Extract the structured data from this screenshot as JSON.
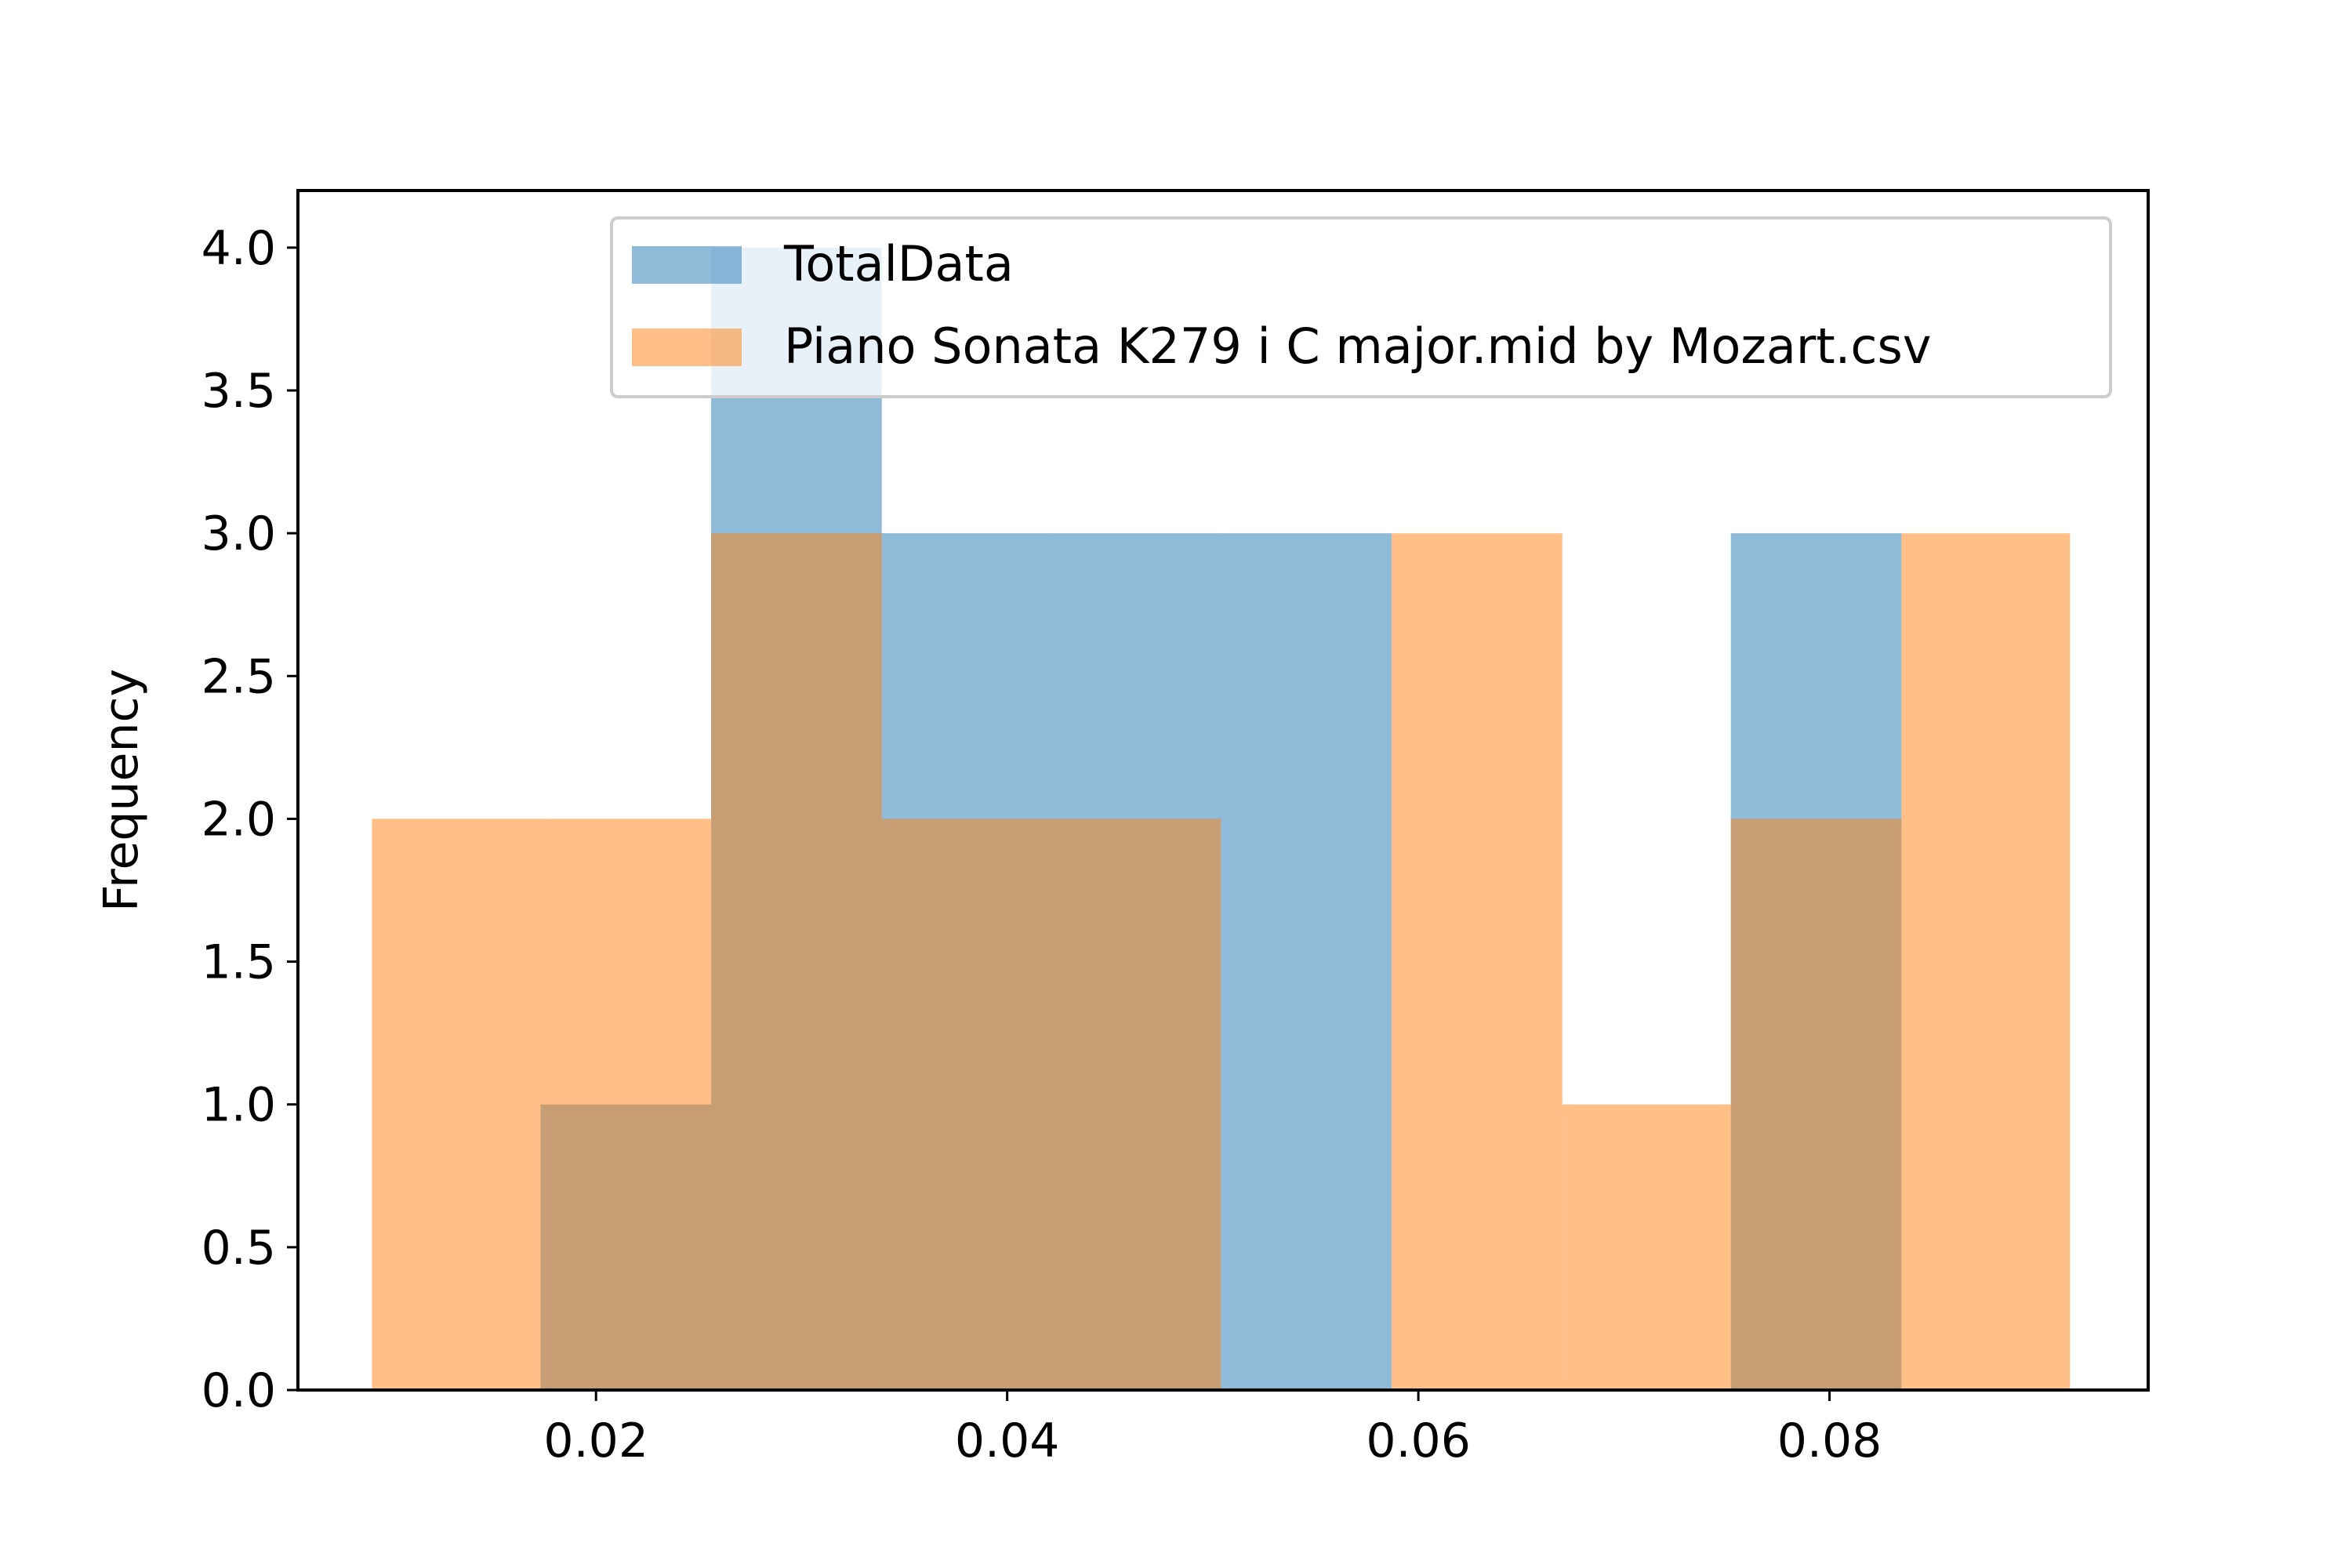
{
  "chart_data": {
    "type": "bar",
    "title": "",
    "xlabel": "",
    "ylabel": "Frequency",
    "xlim": [
      0.0055,
      0.0955
    ],
    "ylim": [
      0,
      4.2
    ],
    "xticks": [
      0.02,
      0.04,
      0.06,
      0.08
    ],
    "xtick_labels": [
      "0.02",
      "0.04",
      "0.06",
      "0.08"
    ],
    "yticks": [
      0,
      0.5,
      1,
      1.5,
      2,
      2.5,
      3,
      3.5,
      4
    ],
    "ytick_labels": [
      "0.0",
      "0.5",
      "1.0",
      "1.5",
      "2.0",
      "2.5",
      "3.0",
      "3.5",
      "4.0"
    ],
    "grid": false,
    "legend_position": "top-right",
    "series": [
      {
        "name": "TotalData",
        "color": "#1f77b4",
        "opacity": 0.5,
        "bin_edges": [
          0.0173,
          0.0256,
          0.0339,
          0.0421,
          0.0504,
          0.0587,
          0.067,
          0.0752,
          0.0835
        ],
        "values": [
          1,
          4,
          3,
          3,
          3,
          0,
          0,
          3
        ]
      },
      {
        "name": "Piano Sonata K279 i C major.mid by Mozart.csv",
        "color": "#ff7f0e",
        "opacity": 0.5,
        "bin_edges": [
          0.0091,
          0.0173,
          0.0256,
          0.0339,
          0.0421,
          0.0504,
          0.0587,
          0.067,
          0.0752,
          0.0835,
          0.0917
        ],
        "values": [
          2,
          2,
          3,
          2,
          2,
          0,
          3,
          1,
          2,
          3
        ]
      }
    ]
  }
}
